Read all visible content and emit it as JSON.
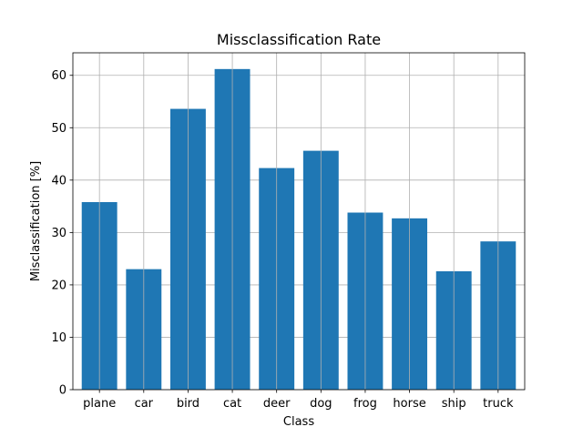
{
  "chart_data": {
    "type": "bar",
    "title": "Missclassification Rate",
    "xlabel": "Class",
    "ylabel": "Misclassification [%]",
    "categories": [
      "plane",
      "car",
      "bird",
      "cat",
      "deer",
      "dog",
      "frog",
      "horse",
      "ship",
      "truck"
    ],
    "values": [
      35.8,
      23.0,
      53.6,
      61.2,
      42.3,
      45.6,
      33.8,
      32.7,
      22.6,
      28.3
    ],
    "ylim": [
      0,
      64.3
    ],
    "yticks": [
      0,
      10,
      20,
      30,
      40,
      50,
      60
    ],
    "grid": true,
    "bar_color": "#1f77b4",
    "grid_color": "#b0b0b0"
  }
}
